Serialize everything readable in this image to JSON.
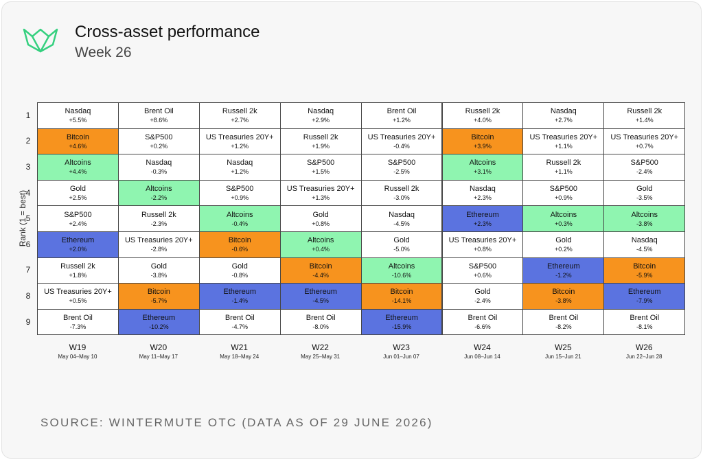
{
  "header": {
    "title": "Cross-asset performance",
    "subtitle": "Week 26"
  },
  "y_label": "Rank (1 = best)",
  "ranks": [
    1,
    2,
    3,
    4,
    5,
    6,
    7,
    8,
    9
  ],
  "colors": {
    "Bitcoin": "#f7931e",
    "Altcoins": "#8ff5b0",
    "Ethereum": "#5b73e0"
  },
  "weeks": [
    {
      "week": "W19",
      "dates": "May 04–May 10",
      "cells": [
        {
          "asset": "Nasdaq",
          "change": "+5.5%"
        },
        {
          "asset": "Bitcoin",
          "change": "+4.6%"
        },
        {
          "asset": "Altcoins",
          "change": "+4.4%"
        },
        {
          "asset": "Gold",
          "change": "+2.5%"
        },
        {
          "asset": "S&P500",
          "change": "+2.4%"
        },
        {
          "asset": "Ethereum",
          "change": "+2.0%"
        },
        {
          "asset": "Russell 2k",
          "change": "+1.8%"
        },
        {
          "asset": "US Treasuries 20Y+",
          "change": "+0.5%"
        },
        {
          "asset": "Brent Oil",
          "change": "-7.3%"
        }
      ]
    },
    {
      "week": "W20",
      "dates": "May 11–May 17",
      "cells": [
        {
          "asset": "Brent Oil",
          "change": "+8.6%"
        },
        {
          "asset": "S&P500",
          "change": "+0.2%"
        },
        {
          "asset": "Nasdaq",
          "change": "-0.3%"
        },
        {
          "asset": "Altcoins",
          "change": "-2.2%"
        },
        {
          "asset": "Russell 2k",
          "change": "-2.3%"
        },
        {
          "asset": "US Treasuries 20Y+",
          "change": "-2.8%"
        },
        {
          "asset": "Gold",
          "change": "-3.8%"
        },
        {
          "asset": "Bitcoin",
          "change": "-5.7%"
        },
        {
          "asset": "Ethereum",
          "change": "-10.2%"
        }
      ]
    },
    {
      "week": "W21",
      "dates": "May 18–May 24",
      "cells": [
        {
          "asset": "Russell 2k",
          "change": "+2.7%"
        },
        {
          "asset": "US Treasuries 20Y+",
          "change": "+1.2%"
        },
        {
          "asset": "Nasdaq",
          "change": "+1.2%"
        },
        {
          "asset": "S&P500",
          "change": "+0.9%"
        },
        {
          "asset": "Altcoins",
          "change": "-0.4%"
        },
        {
          "asset": "Bitcoin",
          "change": "-0.6%"
        },
        {
          "asset": "Gold",
          "change": "-0.8%"
        },
        {
          "asset": "Ethereum",
          "change": "-1.4%"
        },
        {
          "asset": "Brent Oil",
          "change": "-4.7%"
        }
      ]
    },
    {
      "week": "W22",
      "dates": "May 25–May 31",
      "cells": [
        {
          "asset": "Nasdaq",
          "change": "+2.9%"
        },
        {
          "asset": "Russell 2k",
          "change": "+1.9%"
        },
        {
          "asset": "S&P500",
          "change": "+1.5%"
        },
        {
          "asset": "US Treasuries 20Y+",
          "change": "+1.3%"
        },
        {
          "asset": "Gold",
          "change": "+0.8%"
        },
        {
          "asset": "Altcoins",
          "change": "+0.4%"
        },
        {
          "asset": "Bitcoin",
          "change": "-4.4%"
        },
        {
          "asset": "Ethereum",
          "change": "-4.5%"
        },
        {
          "asset": "Brent Oil",
          "change": "-8.0%"
        }
      ]
    },
    {
      "week": "W23",
      "dates": "Jun 01–Jun 07",
      "cells": [
        {
          "asset": "Brent Oil",
          "change": "+1.2%"
        },
        {
          "asset": "US Treasuries 20Y+",
          "change": "-0.4%"
        },
        {
          "asset": "S&P500",
          "change": "-2.5%"
        },
        {
          "asset": "Russell 2k",
          "change": "-3.0%"
        },
        {
          "asset": "Nasdaq",
          "change": "-4.5%"
        },
        {
          "asset": "Gold",
          "change": "-5.0%"
        },
        {
          "asset": "Altcoins",
          "change": "-10.6%"
        },
        {
          "asset": "Bitcoin",
          "change": "-14.1%"
        },
        {
          "asset": "Ethereum",
          "change": "-15.9%"
        }
      ]
    },
    {
      "week": "W24",
      "dates": "Jun 08–Jun 14",
      "cells": [
        {
          "asset": "Russell 2k",
          "change": "+4.0%"
        },
        {
          "asset": "Bitcoin",
          "change": "+3.9%"
        },
        {
          "asset": "Altcoins",
          "change": "+3.1%"
        },
        {
          "asset": "Nasdaq",
          "change": "+2.3%"
        },
        {
          "asset": "Ethereum",
          "change": "+2.3%"
        },
        {
          "asset": "US Treasuries 20Y+",
          "change": "+0.8%"
        },
        {
          "asset": "S&P500",
          "change": "+0.6%"
        },
        {
          "asset": "Gold",
          "change": "-2.4%"
        },
        {
          "asset": "Brent Oil",
          "change": "-6.6%"
        }
      ]
    },
    {
      "week": "W25",
      "dates": "Jun 15–Jun 21",
      "cells": [
        {
          "asset": "Nasdaq",
          "change": "+2.7%"
        },
        {
          "asset": "US Treasuries 20Y+",
          "change": "+1.1%"
        },
        {
          "asset": "Russell 2k",
          "change": "+1.1%"
        },
        {
          "asset": "S&P500",
          "change": "+0.9%"
        },
        {
          "asset": "Altcoins",
          "change": "+0.3%"
        },
        {
          "asset": "Gold",
          "change": "+0.2%"
        },
        {
          "asset": "Ethereum",
          "change": "-1.2%"
        },
        {
          "asset": "Bitcoin",
          "change": "-3.8%"
        },
        {
          "asset": "Brent Oil",
          "change": "-8.2%"
        }
      ]
    },
    {
      "week": "W26",
      "dates": "Jun 22–Jun 28",
      "cells": [
        {
          "asset": "Russell 2k",
          "change": "+1.4%"
        },
        {
          "asset": "US Treasuries 20Y+",
          "change": "+0.7%"
        },
        {
          "asset": "S&P500",
          "change": "-2.4%"
        },
        {
          "asset": "Gold",
          "change": "-3.5%"
        },
        {
          "asset": "Altcoins",
          "change": "-3.8%"
        },
        {
          "asset": "Nasdaq",
          "change": "-4.5%"
        },
        {
          "asset": "Bitcoin",
          "change": "-5.9%"
        },
        {
          "asset": "Ethereum",
          "change": "-7.9%"
        },
        {
          "asset": "Brent Oil",
          "change": "-8.1%"
        }
      ]
    }
  ],
  "source": "SOURCE: WINTERMUTE OTC (DATA AS OF 29 JUNE 2026)"
}
